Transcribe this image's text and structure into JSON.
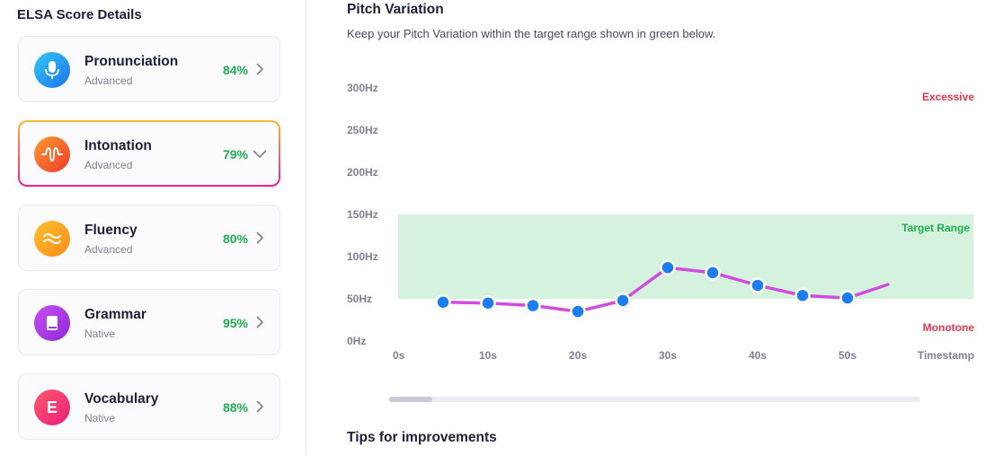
{
  "sidebar": {
    "title": "ELSA Score Details",
    "cards": [
      {
        "name": "Pronunciation",
        "level": "Advanced",
        "score": "84%",
        "icon": "microphone-icon",
        "expanded": false
      },
      {
        "name": "Intonation",
        "level": "Advanced",
        "score": "79%",
        "icon": "sound-wave-icon",
        "expanded": true
      },
      {
        "name": "Fluency",
        "level": "Advanced",
        "score": "80%",
        "icon": "waves-icon",
        "expanded": false
      },
      {
        "name": "Grammar",
        "level": "Native",
        "score": "95%",
        "icon": "book-icon",
        "expanded": false
      },
      {
        "name": "Vocabulary",
        "level": "Native",
        "score": "88%",
        "icon": "letter-e-icon",
        "icon_letter": "E",
        "expanded": false
      }
    ]
  },
  "main": {
    "title": "Pitch Variation",
    "subtitle": "Keep your Pitch Variation within the target range shown in green below.",
    "tips_title": "Tips for improvements"
  },
  "colors": {
    "score_green": "#1fae4f",
    "target_band": "#d5f2df",
    "line": "#cf4ddd",
    "point": "#1a7ef0",
    "warning_red": "#e8364b"
  },
  "chart_data": {
    "type": "line",
    "title": "Pitch Variation",
    "xlabel": "Timestamp",
    "ylabel": "",
    "y_ticks": [
      "0Hz",
      "50Hz",
      "100Hz",
      "150Hz",
      "200Hz",
      "250Hz",
      "300Hz"
    ],
    "x_ticks": [
      "0s",
      "10s",
      "20s",
      "30s",
      "40s",
      "50s"
    ],
    "ylim": [
      0,
      300
    ],
    "xlim": [
      0,
      55
    ],
    "target_range": [
      50,
      150
    ],
    "target_label": "Target Range",
    "excessive_label": "Excessive",
    "monotone_label": "Monotone",
    "series": [
      {
        "name": "Pitch",
        "points": [
          {
            "x": 5,
            "y": 46
          },
          {
            "x": 10,
            "y": 45
          },
          {
            "x": 15,
            "y": 42
          },
          {
            "x": 20,
            "y": 35
          },
          {
            "x": 25,
            "y": 48
          },
          {
            "x": 30,
            "y": 87
          },
          {
            "x": 35,
            "y": 81
          },
          {
            "x": 40,
            "y": 66
          },
          {
            "x": 45,
            "y": 54
          },
          {
            "x": 50,
            "y": 51
          }
        ],
        "tail": {
          "x": 54.5,
          "y": 67
        }
      }
    ]
  }
}
